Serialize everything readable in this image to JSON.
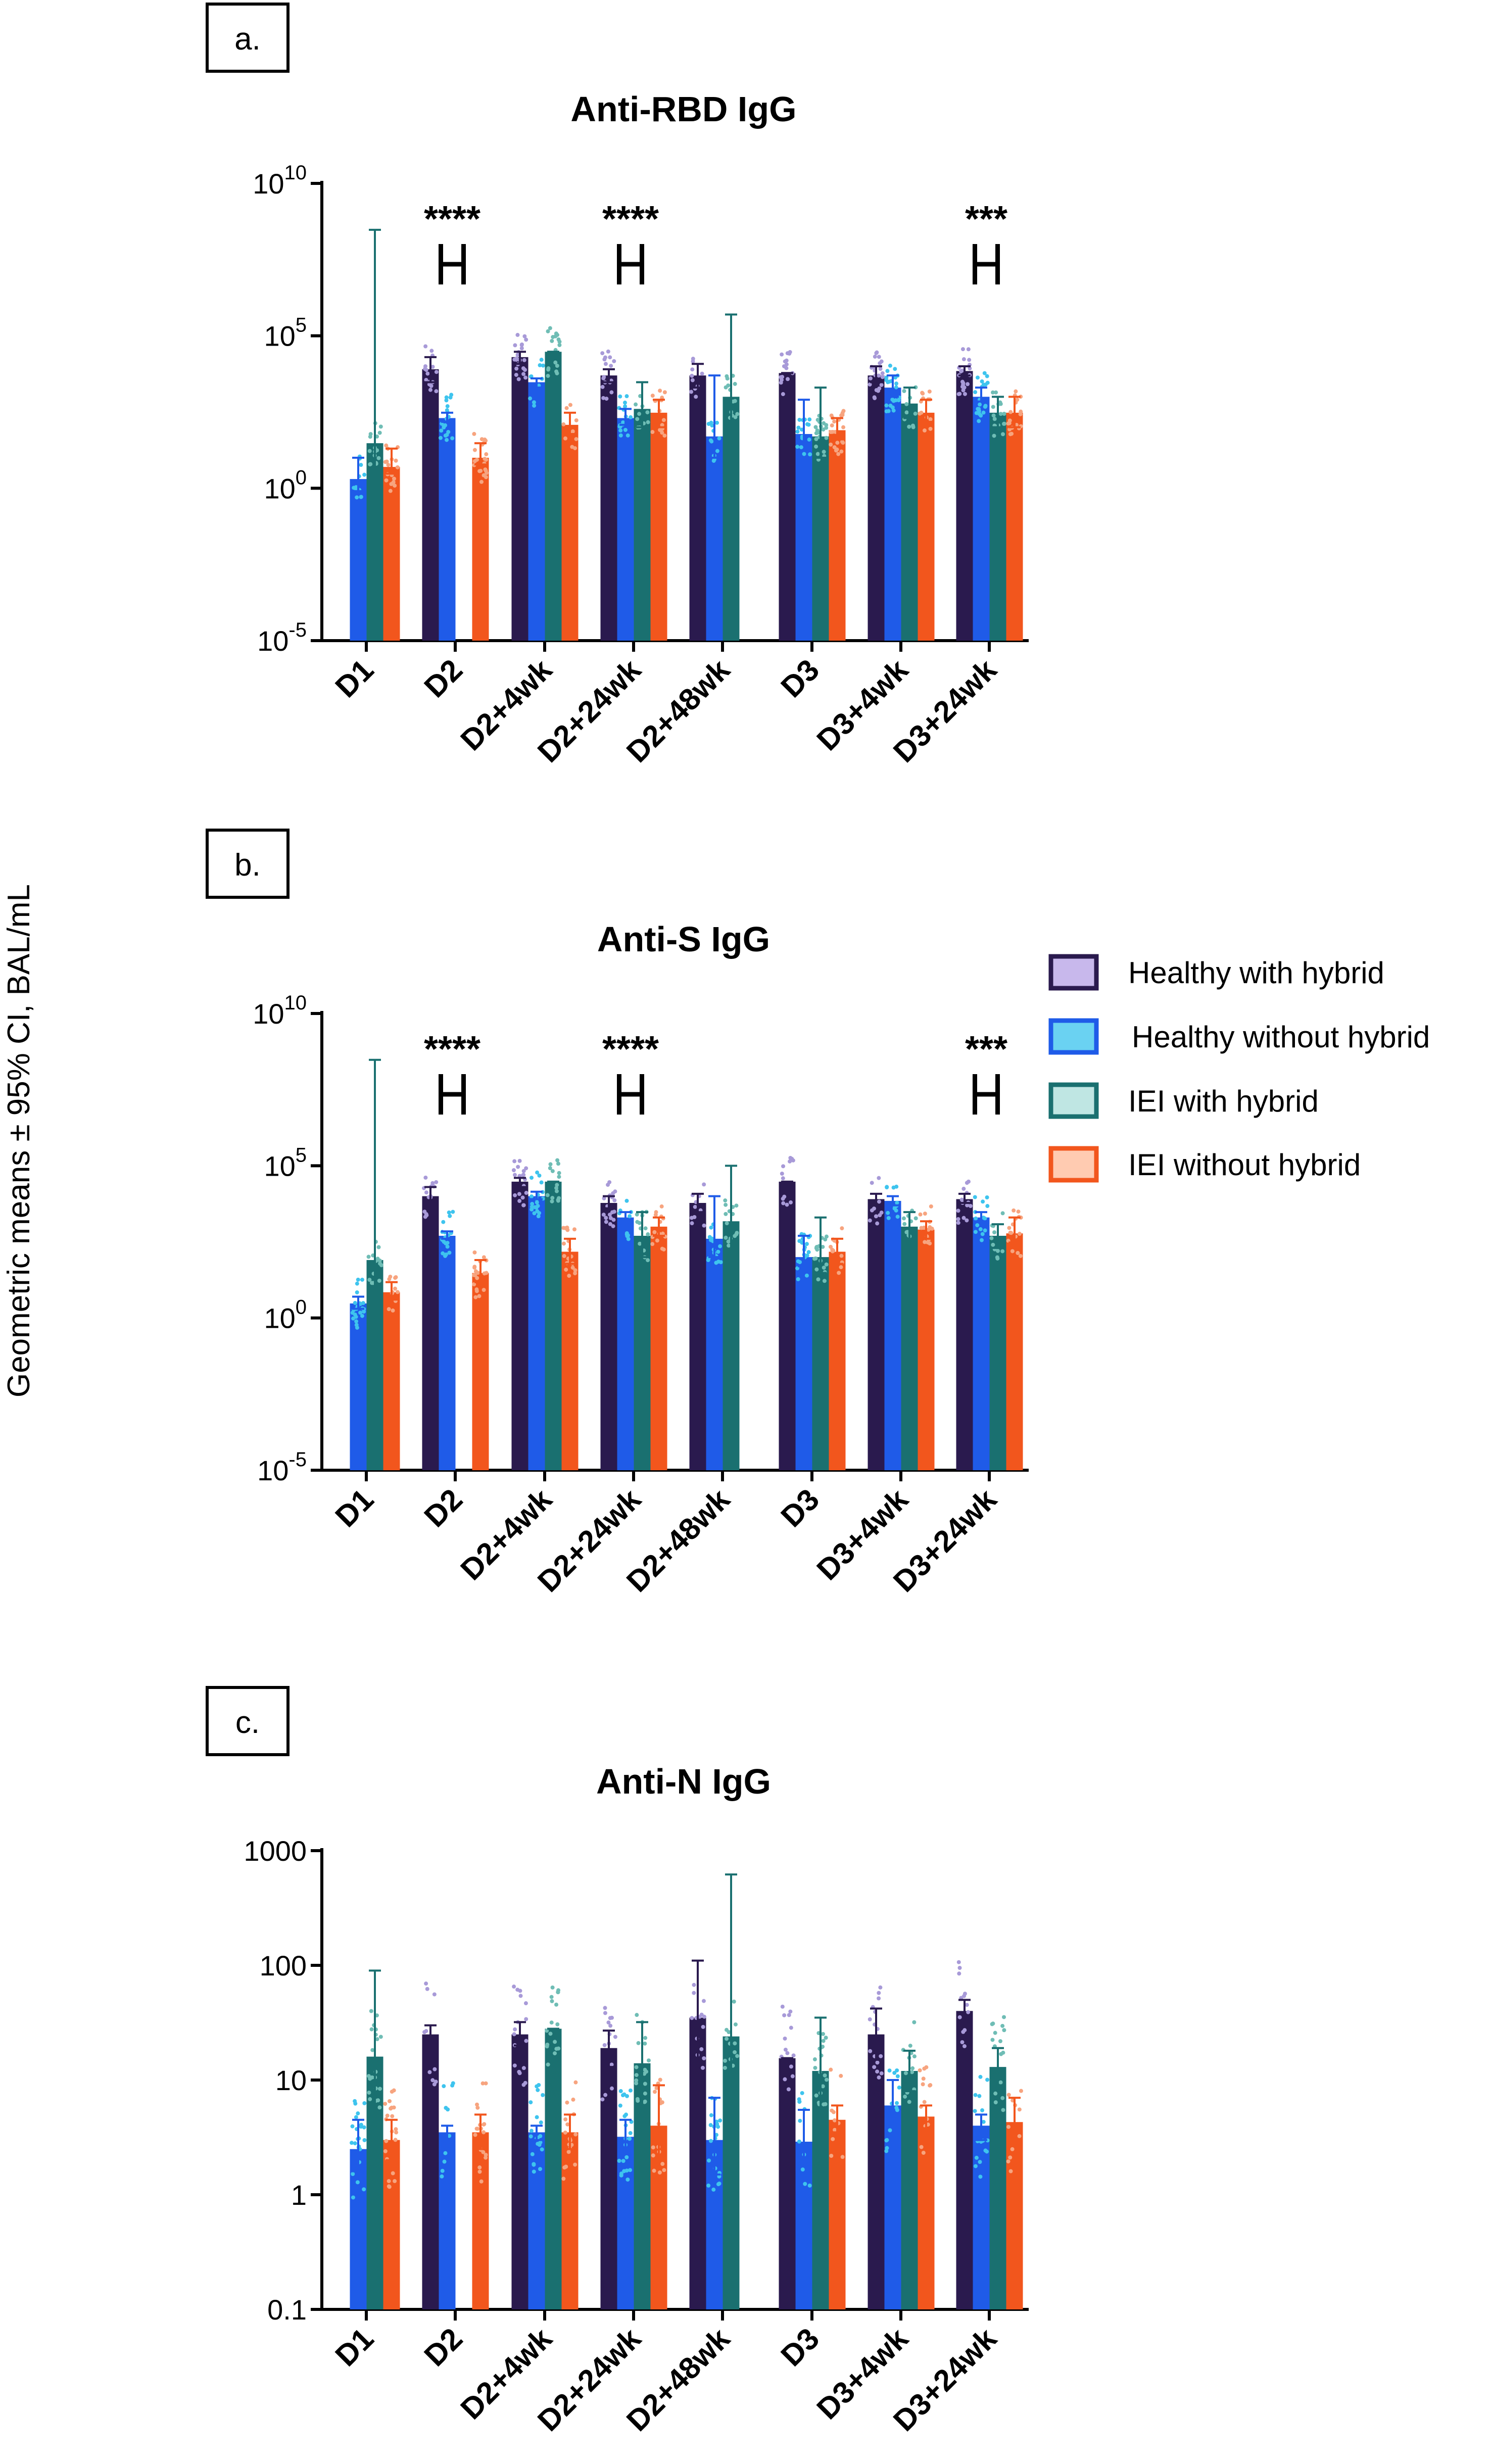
{
  "y_axis_label": "Geometric means ± 95% CI, BAL/mL",
  "legend": [
    {
      "label": "Healthy with hybrid",
      "color": "#2a1a4e",
      "fill": "#c8b8ec"
    },
    {
      "label": "Healthy without hybrid",
      "color": "#1f5be8",
      "fill": "#6ad2f2"
    },
    {
      "label": "IEI with hybrid",
      "color": "#1a7070",
      "fill": "#bfe6e3"
    },
    {
      "label": "IEI without hybrid",
      "color": "#f2561d",
      "fill": "#ffcbb1"
    }
  ],
  "colors": {
    "healthy_hybrid": "#2a1a4e",
    "healthy_no_hybrid": "#1f5be8",
    "iei_hybrid": "#1a7070",
    "iei_no_hybrid": "#f2561d",
    "dot_healthy_hybrid": "#a89ad8",
    "dot_healthy_no_hybrid": "#3ec4ee",
    "dot_iei_hybrid": "#6fbdb5",
    "dot_iei_no_hybrid": "#f7a47f"
  },
  "chart_data": [
    {
      "type": "bar",
      "panel_label": "a.",
      "title": "Anti-RBD IgG",
      "scale": "log",
      "ylim": [
        1e-05,
        10000000000
      ],
      "yticks": [
        {
          "value": 1e-05,
          "base": "10",
          "exp": "-5"
        },
        {
          "value": 1,
          "base": "10",
          "exp": "0"
        },
        {
          "value": 100000,
          "base": "10",
          "exp": "5"
        },
        {
          "value": 10000000000,
          "base": "10",
          "exp": "10"
        }
      ],
      "categories": [
        "D1",
        "D2",
        "D2+4wk",
        "D2+24wk",
        "D2+48wk",
        "D3",
        "D3+4wk",
        "D3+24wk"
      ],
      "series": [
        {
          "name": "Healthy with hybrid",
          "values": [
            null,
            8000,
            20000,
            5000,
            5000,
            6000,
            5000,
            7000
          ],
          "errors": [
            null,
            [
              3000,
              20000
            ],
            [
              12000,
              30000
            ],
            [
              3000,
              8000
            ],
            [
              2000,
              12000
            ],
            [
              6000,
              6000
            ],
            [
              3000,
              10000
            ],
            [
              5000,
              10000
            ]
          ]
        },
        {
          "name": "Healthy without hybrid",
          "values": [
            2,
            200,
            3000,
            200,
            50,
            60,
            2000,
            1000
          ],
          "errors": [
            [
              0.8,
              10
            ],
            [
              150,
              300
            ],
            [
              2000,
              4000
            ],
            [
              120,
              400
            ],
            [
              10,
              5000
            ],
            [
              30,
              800
            ],
            [
              1000,
              5000
            ],
            [
              700,
              2000
            ]
          ]
        },
        {
          "name": "IEI with hybrid",
          "values": [
            30,
            null,
            30000,
            400,
            1000,
            50,
            600,
            300
          ],
          "errors": [
            [
              1,
              300000000
            ],
            null,
            [
              30000,
              30000
            ],
            [
              100,
              3000
            ],
            [
              100,
              500000
            ],
            [
              10,
              2000
            ],
            [
              200,
              2000
            ],
            [
              100,
              1000
            ]
          ]
        },
        {
          "name": "IEI without hybrid",
          "values": [
            5,
            10,
            120,
            300,
            null,
            80,
            300,
            300
          ],
          "errors": [
            [
              3,
              20
            ],
            [
              6,
              30
            ],
            [
              60,
              300
            ],
            [
              100,
              800
            ],
            null,
            [
              40,
              200
            ],
            [
              150,
              800
            ],
            [
              100,
              1000
            ]
          ]
        }
      ],
      "significance": [
        {
          "category": "D2",
          "stars": "****"
        },
        {
          "category": "D2+24wk",
          "stars": "****"
        },
        {
          "category": "D3+24wk",
          "stars": "***"
        }
      ],
      "xlabel": "",
      "ylabel": ""
    },
    {
      "type": "bar",
      "panel_label": "b.",
      "title": "Anti-S IgG",
      "scale": "log",
      "ylim": [
        1e-05,
        10000000000
      ],
      "yticks": [
        {
          "value": 1e-05,
          "base": "10",
          "exp": "-5"
        },
        {
          "value": 1,
          "base": "10",
          "exp": "0"
        },
        {
          "value": 100000,
          "base": "10",
          "exp": "5"
        },
        {
          "value": 10000000000,
          "base": "10",
          "exp": "10"
        }
      ],
      "categories": [
        "D1",
        "D2",
        "D2+4wk",
        "D2+24wk",
        "D2+48wk",
        "D3",
        "D3+4wk",
        "D3+24wk"
      ],
      "series": [
        {
          "name": "Healthy with hybrid",
          "values": [
            null,
            10000,
            30000,
            6000,
            6000,
            30000,
            8000,
            8000
          ],
          "errors": [
            null,
            [
              6000,
              20000
            ],
            [
              20000,
              40000
            ],
            [
              4000,
              10000
            ],
            [
              3000,
              12000
            ],
            [
              30000,
              30000
            ],
            [
              5000,
              12000
            ],
            [
              6000,
              12000
            ]
          ]
        },
        {
          "name": "Healthy without hybrid",
          "values": [
            3,
            500,
            10000,
            2000,
            400,
            100,
            7000,
            2000
          ],
          "errors": [
            [
              2,
              5
            ],
            [
              400,
              700
            ],
            [
              8000,
              14000
            ],
            [
              1500,
              3000
            ],
            [
              100,
              10000
            ],
            [
              50,
              500
            ],
            [
              5000,
              10000
            ],
            [
              1500,
              3000
            ]
          ]
        },
        {
          "name": "IEI with hybrid",
          "values": [
            80,
            null,
            30000,
            500,
            1500,
            100,
            1000,
            500
          ],
          "errors": [
            [
              5,
              300000000
            ],
            null,
            [
              30000,
              30000
            ],
            [
              100,
              3000
            ],
            [
              100,
              100000
            ],
            [
              30,
              2000
            ],
            [
              300,
              3000
            ],
            [
              200,
              1200
            ]
          ]
        },
        {
          "name": "IEI without hybrid",
          "values": [
            7,
            30,
            150,
            1000,
            null,
            150,
            800,
            600
          ],
          "errors": [
            [
              4,
              15
            ],
            [
              15,
              80
            ],
            [
              60,
              400
            ],
            [
              500,
              2000
            ],
            null,
            [
              60,
              400
            ],
            [
              400,
              1500
            ],
            [
              300,
              2000
            ]
          ]
        }
      ],
      "significance": [
        {
          "category": "D2",
          "stars": "****"
        },
        {
          "category": "D2+24wk",
          "stars": "****"
        },
        {
          "category": "D3+24wk",
          "stars": "***"
        }
      ],
      "xlabel": "",
      "ylabel": ""
    },
    {
      "type": "bar",
      "panel_label": "c.",
      "title": "Anti-N IgG",
      "scale": "log",
      "ylim": [
        0.1,
        1000
      ],
      "yticks": [
        {
          "value": 0.1,
          "label": "0.1"
        },
        {
          "value": 1,
          "label": "1"
        },
        {
          "value": 10,
          "label": "10"
        },
        {
          "value": 100,
          "label": "100"
        },
        {
          "value": 1000,
          "label": "1000"
        }
      ],
      "categories": [
        "D1",
        "D2",
        "D2+4wk",
        "D2+24wk",
        "D2+48wk",
        "D3",
        "D3+4wk",
        "D3+24wk"
      ],
      "series": [
        {
          "name": "Healthy with hybrid",
          "values": [
            null,
            25,
            25,
            19,
            35,
            15.5,
            25,
            40
          ],
          "errors": [
            null,
            [
              20,
              30
            ],
            [
              20,
              32
            ],
            [
              13,
              27
            ],
            [
              12,
              110
            ],
            [
              15.5,
              15.5
            ],
            [
              15,
              42
            ],
            [
              32,
              50
            ]
          ]
        },
        {
          "name": "Healthy without hybrid",
          "values": [
            2.5,
            3.5,
            3.5,
            3.2,
            3,
            2.9,
            6,
            4
          ],
          "errors": [
            [
              1.6,
              4.5
            ],
            [
              3,
              4
            ],
            [
              3,
              4
            ],
            [
              2.3,
              4.5
            ],
            [
              1.5,
              7
            ],
            [
              1.8,
              5.5
            ],
            [
              4,
              10
            ],
            [
              3,
              5
            ]
          ]
        },
        {
          "name": "IEI with hybrid",
          "values": [
            16,
            null,
            28,
            14,
            24,
            12,
            12,
            13
          ],
          "errors": [
            [
              3,
              90
            ],
            null,
            [
              28,
              28
            ],
            [
              6,
              32
            ],
            [
              1,
              620
            ],
            [
              4,
              35
            ],
            [
              8,
              18
            ],
            [
              9,
              19
            ]
          ]
        },
        {
          "name": "IEI without hybrid",
          "values": [
            3,
            3.5,
            3.5,
            4,
            null,
            4.5,
            4.8,
            4.3
          ],
          "errors": [
            [
              2,
              4.5
            ],
            [
              2.5,
              5
            ],
            [
              2.5,
              5
            ],
            [
              2,
              9
            ],
            null,
            [
              3.5,
              6
            ],
            [
              3.8,
              6
            ],
            [
              2.8,
              7
            ]
          ]
        }
      ],
      "significance": [],
      "xlabel": "",
      "ylabel": ""
    }
  ]
}
